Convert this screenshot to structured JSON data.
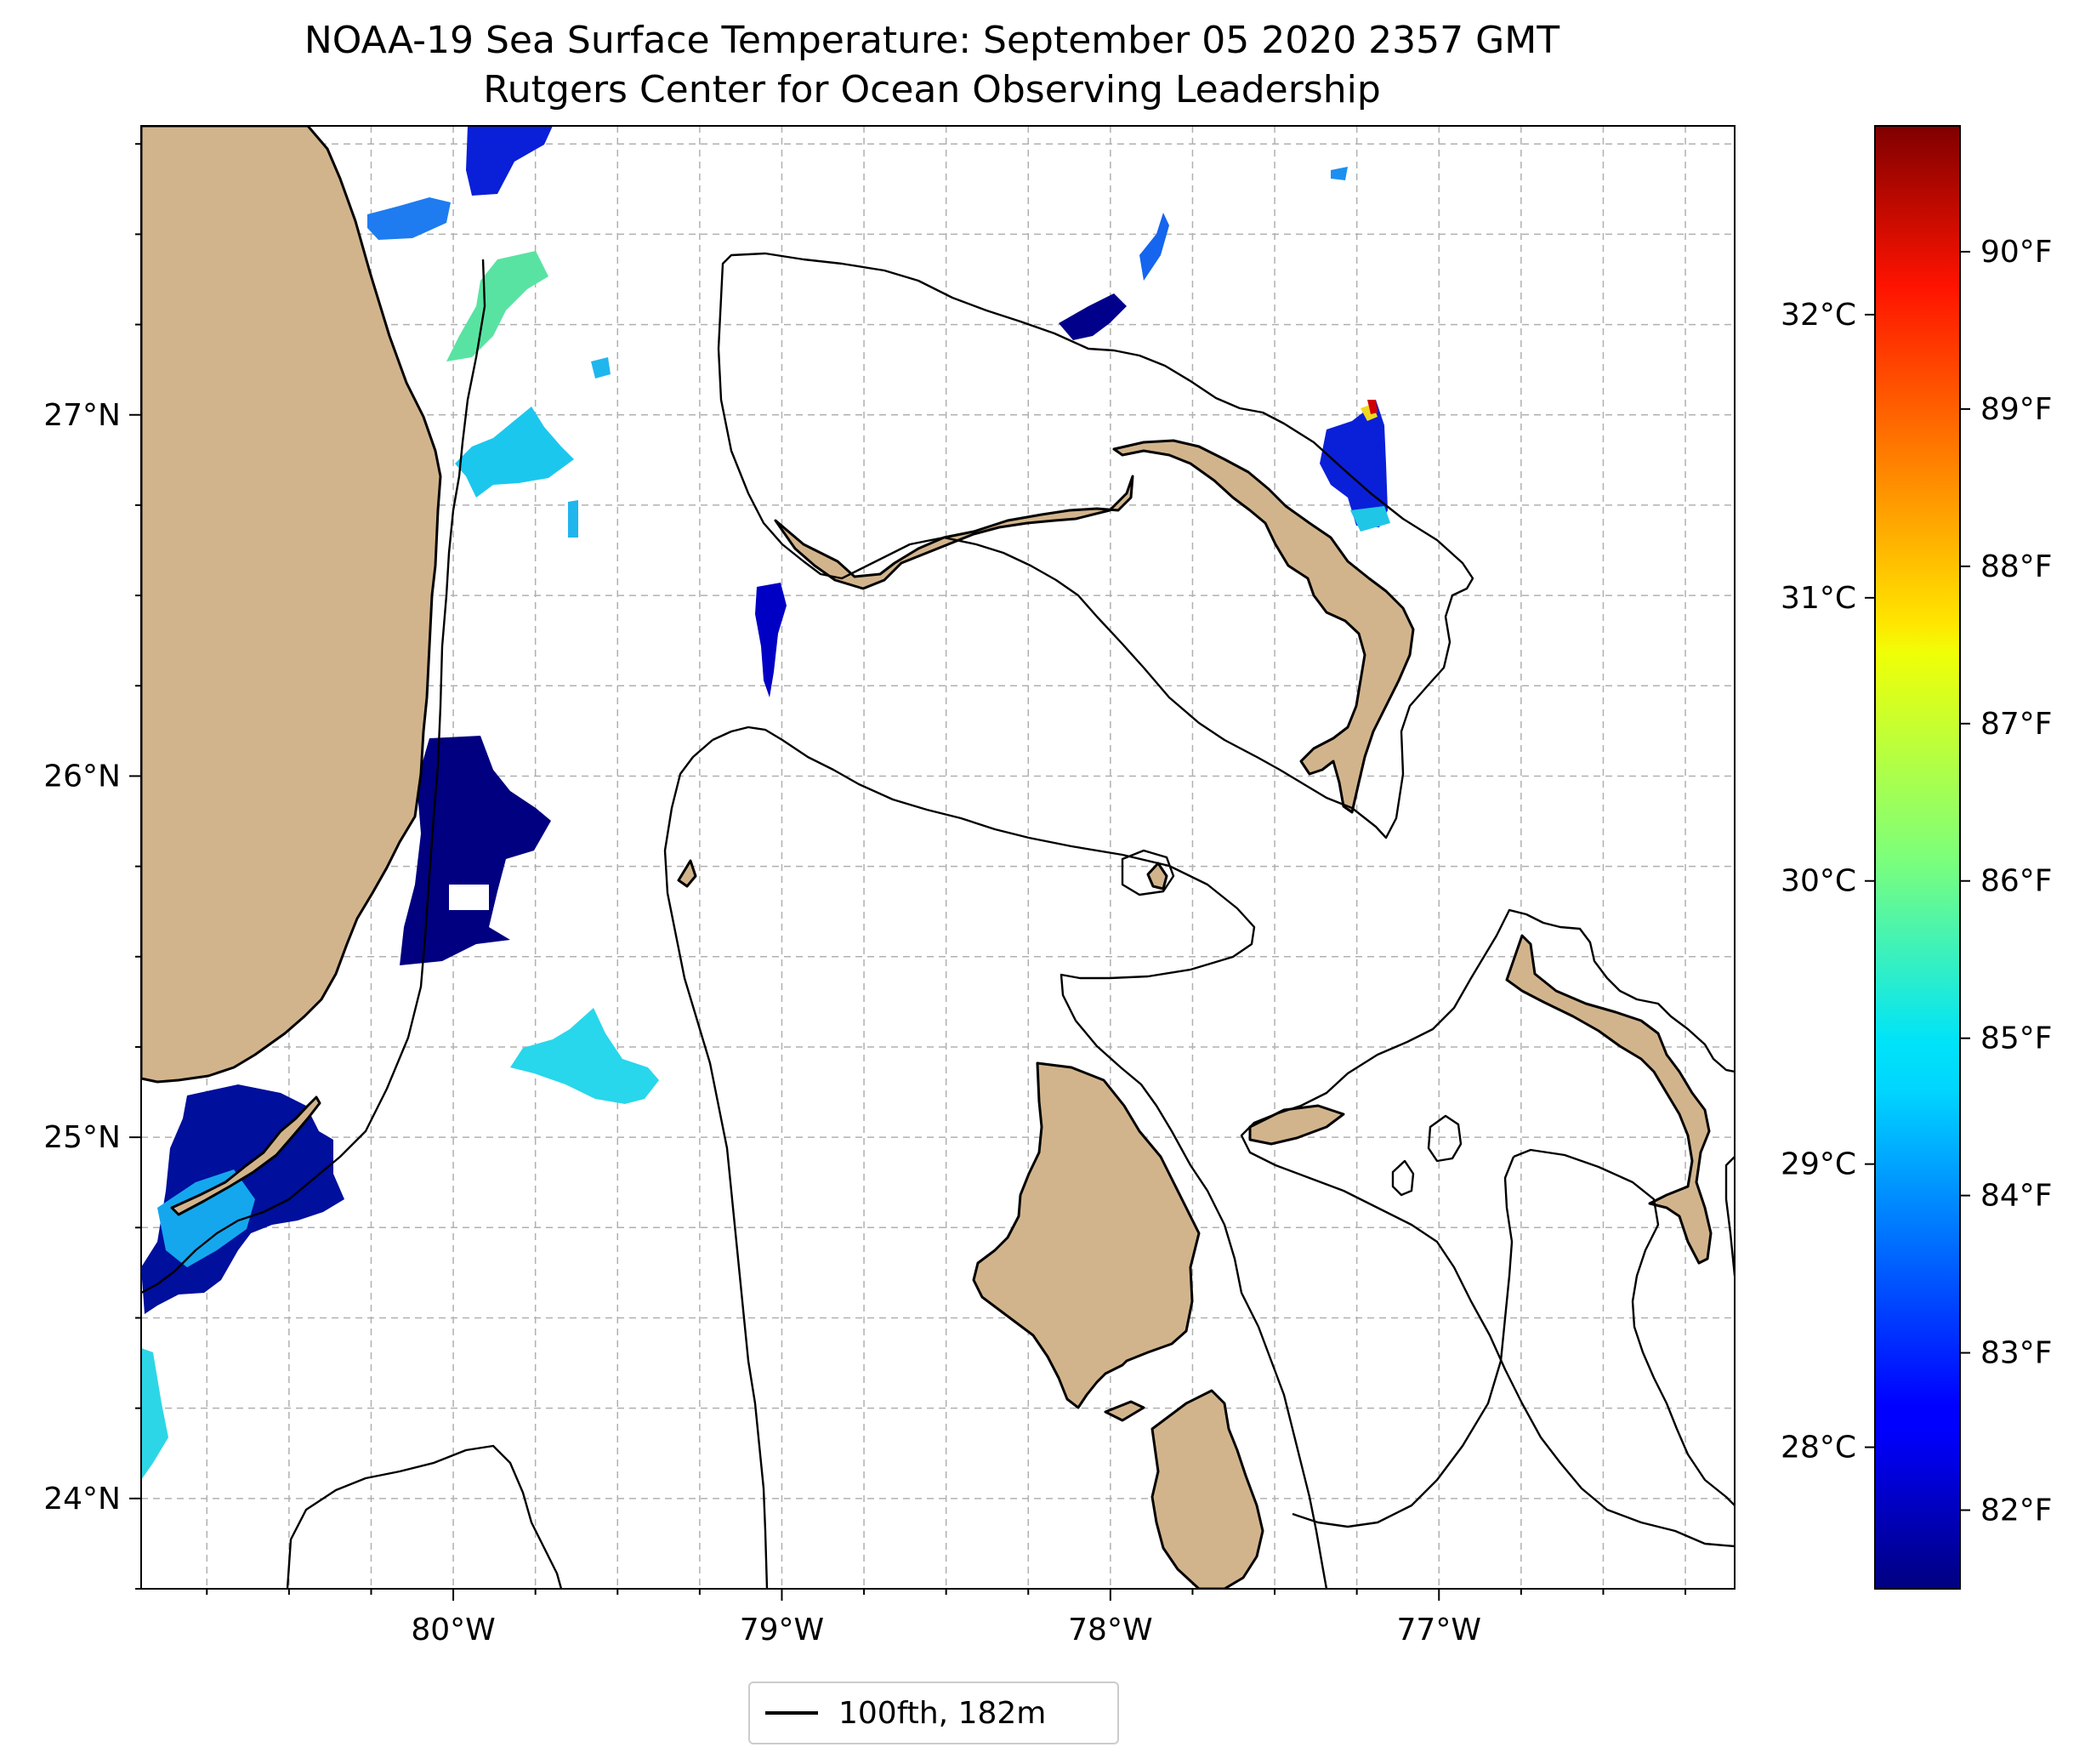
{
  "title": {
    "line1": "NOAA-19 Sea Surface Temperature: September 05 2020 2357 GMT",
    "line2": "Rutgers Center for Ocean Observing Leadership"
  },
  "map": {
    "lon_range": [
      -80.95,
      -76.1
    ],
    "lat_range": [
      23.75,
      27.8
    ],
    "lon_ticks": [
      "80°W",
      "79°W",
      "78°W",
      "77°W"
    ],
    "lat_ticks": [
      "24°N",
      "25°N",
      "26°N",
      "27°N"
    ],
    "gridlines": true,
    "land_color": "#d2b48c",
    "lake_color": "#9bb6e0",
    "ocean_color": "#ffffff"
  },
  "colorbar": {
    "colormap": "jet",
    "fahrenheit_ticks": [
      "82°F",
      "83°F",
      "84°F",
      "85°F",
      "86°F",
      "87°F",
      "88°F",
      "89°F",
      "90°F"
    ],
    "celsius_ticks": [
      "28°C",
      "29°C",
      "30°C",
      "31°C",
      "32°C"
    ],
    "range_F": [
      81.5,
      90.8
    ]
  },
  "legend": {
    "label": "100fth, 182m"
  }
}
